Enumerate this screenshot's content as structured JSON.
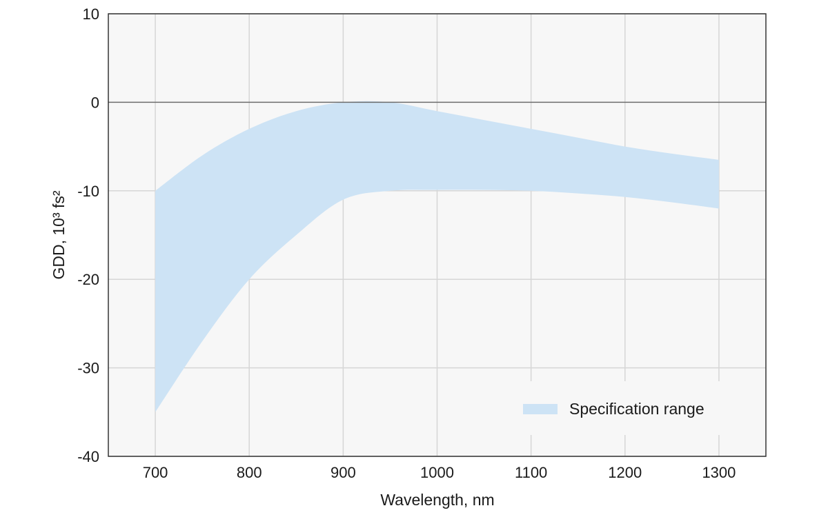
{
  "chart_data": {
    "type": "area",
    "xlabel": "Wavelength, nm",
    "ylabel": "GDD, 10³ fs²",
    "xlim": [
      650,
      1350
    ],
    "ylim": [
      -40,
      10
    ],
    "xticks": [
      700,
      800,
      900,
      1000,
      1100,
      1200,
      1300
    ],
    "yticks": [
      10,
      0,
      -10,
      -20,
      -30,
      -40
    ],
    "grid": true,
    "legend_position": "bottom-right",
    "series": [
      {
        "name": "Specification range",
        "color": "#cde3f5",
        "x": [
          700,
          750,
          800,
          850,
          900,
          950,
          1000,
          1050,
          1100,
          1150,
          1200,
          1250,
          1300
        ],
        "upper": [
          -10,
          -6,
          -3,
          -1,
          0,
          0,
          -1,
          -2,
          -3,
          -4,
          -5,
          -5.8,
          -6.5
        ],
        "lower": [
          -35,
          -27,
          -20,
          -15,
          -11,
          -10,
          -9.9,
          -9.9,
          -10,
          -10.3,
          -10.7,
          -11.3,
          -12
        ]
      }
    ]
  }
}
